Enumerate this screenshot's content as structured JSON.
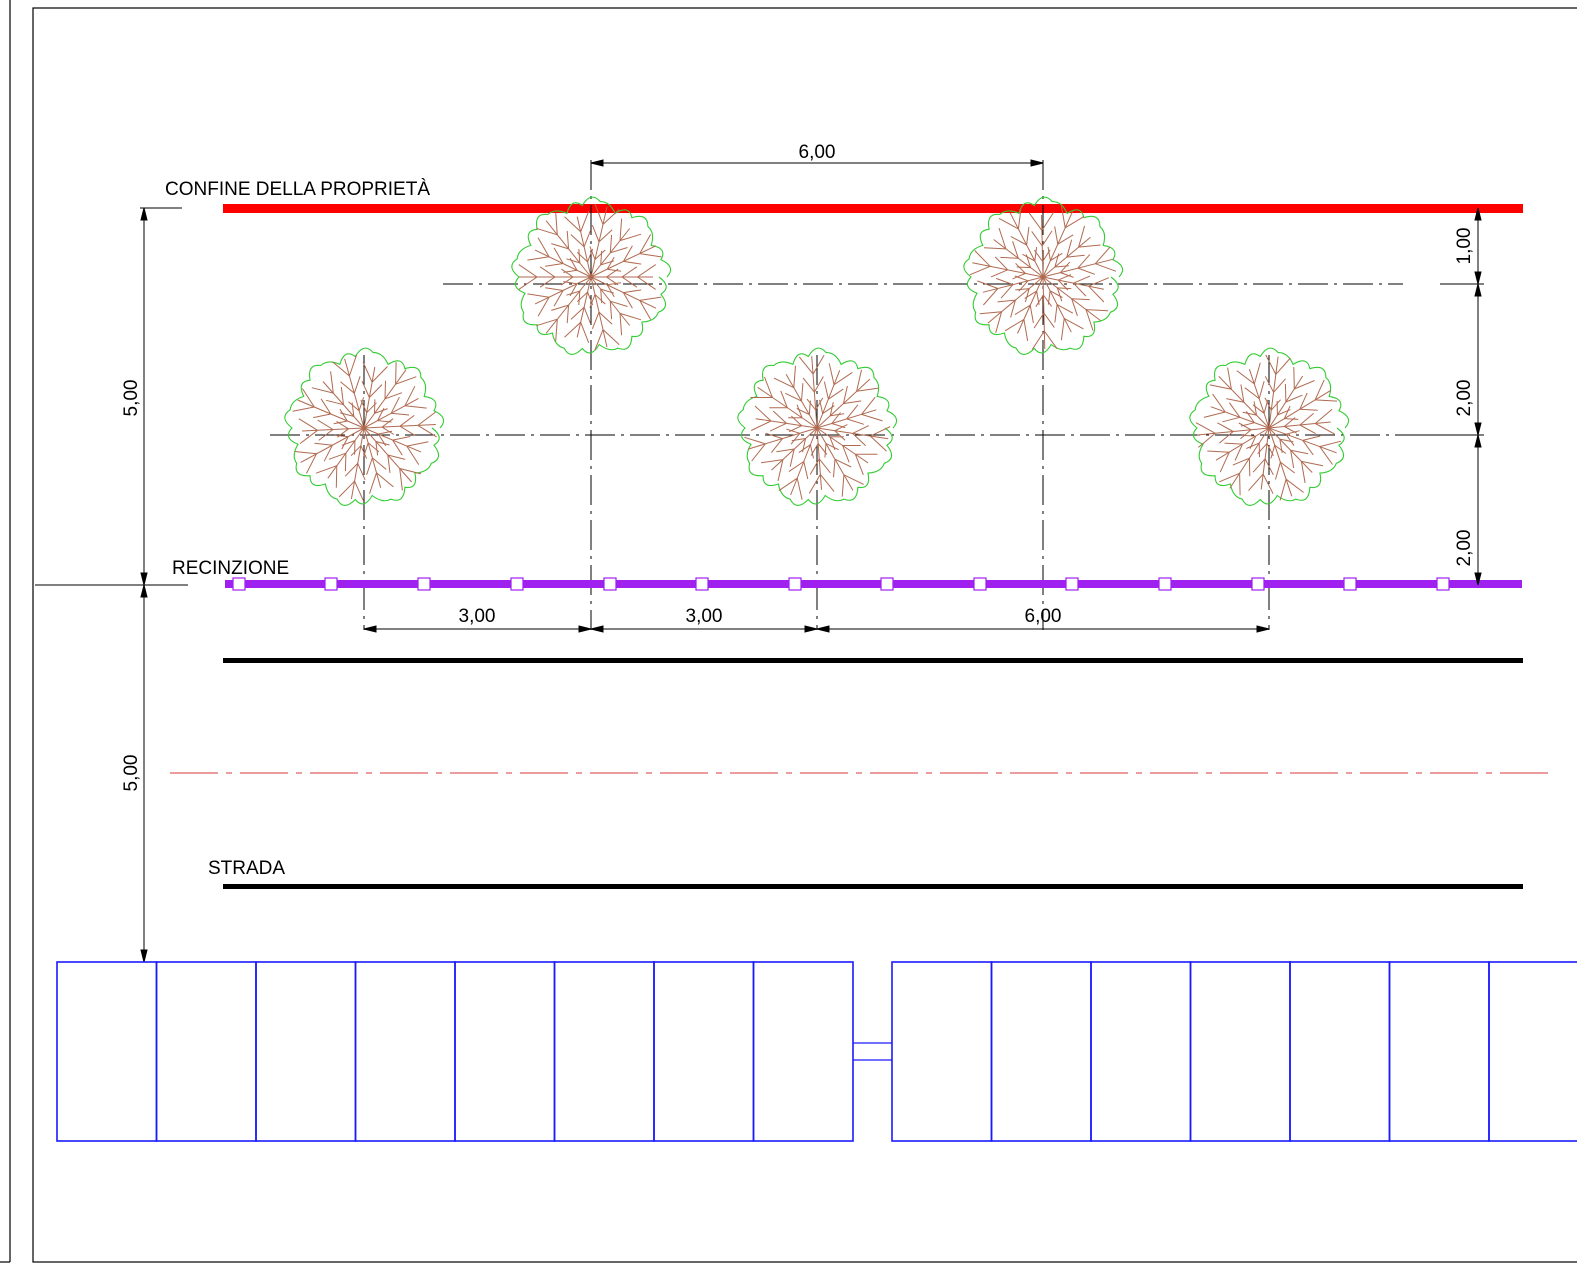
{
  "labels": {
    "property_line": "CONFINE DELLA PROPRIETÀ",
    "fence": "RECINZIONE",
    "road": "STRADA"
  },
  "dimensions": {
    "top_spacing": "6,00",
    "left_upper": "5,00",
    "left_lower": "5,00",
    "right_a": "1,00",
    "right_b": "2,00",
    "right_c": "2,00",
    "bottom_a": "3,00",
    "bottom_b": "3,00",
    "bottom_c": "6,00"
  },
  "colors": {
    "property_line": "#ff0000",
    "fence": "#a020f0",
    "road": "#000000",
    "road_axis": "#e06060",
    "tree_crown": "#33cc33",
    "tree_branches": "#b06a50",
    "panels": "#1a1aff"
  }
}
